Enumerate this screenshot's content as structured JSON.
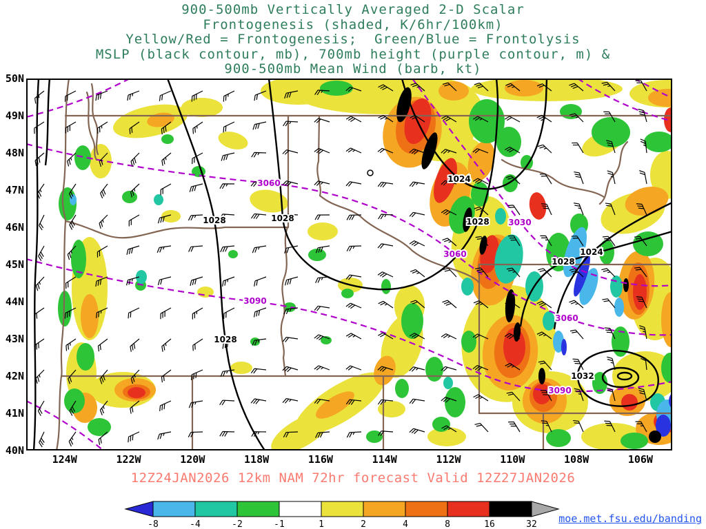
{
  "title": {
    "lines": [
      "900-500mb Vertically Averaged 2-D Scalar",
      "Frontogenesis (shaded, K/6hr/100km)",
      "Yellow/Red = Frontogenesis;  Green/Blue = Frontolysis",
      "MSLP (black contour, mb), 700mb height (purple contour, m) &",
      "900-500mb Mean Wind (barb, kt)"
    ],
    "color": "#2e7d5b"
  },
  "map": {
    "lat_ticks": [
      "50N",
      "49N",
      "48N",
      "47N",
      "46N",
      "45N",
      "44N",
      "43N",
      "42N",
      "41N",
      "40N"
    ],
    "lon_ticks": [
      "124W",
      "122W",
      "120W",
      "118W",
      "116W",
      "114W",
      "112W",
      "110W",
      "108W",
      "106W"
    ],
    "mslp_labels": [
      "1028",
      "1028",
      "1024",
      "1028",
      "1028",
      "1024",
      "1028",
      "1032"
    ],
    "height_labels": [
      "3060",
      "3030",
      "3060",
      "3060",
      "3090",
      "3090"
    ],
    "contour_colors": {
      "mslp": "#000000",
      "height": "#b000cc",
      "state_borders": "#836553"
    }
  },
  "caption": {
    "text": "12Z24JAN2026 12km NAM 72hr forecast Valid 12Z27JAN2026",
    "color": "#fa7a70"
  },
  "colorbar": {
    "ticks": [
      "-8",
      "-4",
      "-2",
      "-1",
      "1",
      "2",
      "4",
      "8",
      "16",
      "32"
    ],
    "segment_colors": [
      "#49b7ea",
      "#20c7a2",
      "#2ec437",
      "#ffffff",
      "#ece23c",
      "#f5a623",
      "#ef7116",
      "#e8301f",
      "#000000"
    ],
    "left_arrow_color": "#2929d6",
    "right_arrow_color": "#a8a8a8"
  },
  "footer_link": {
    "text": "moe.met.fsu.edu/banding",
    "color": "#2255ee"
  },
  "wind_barbs": {
    "color": "#000000",
    "x_step": 46,
    "y_step": 45
  }
}
